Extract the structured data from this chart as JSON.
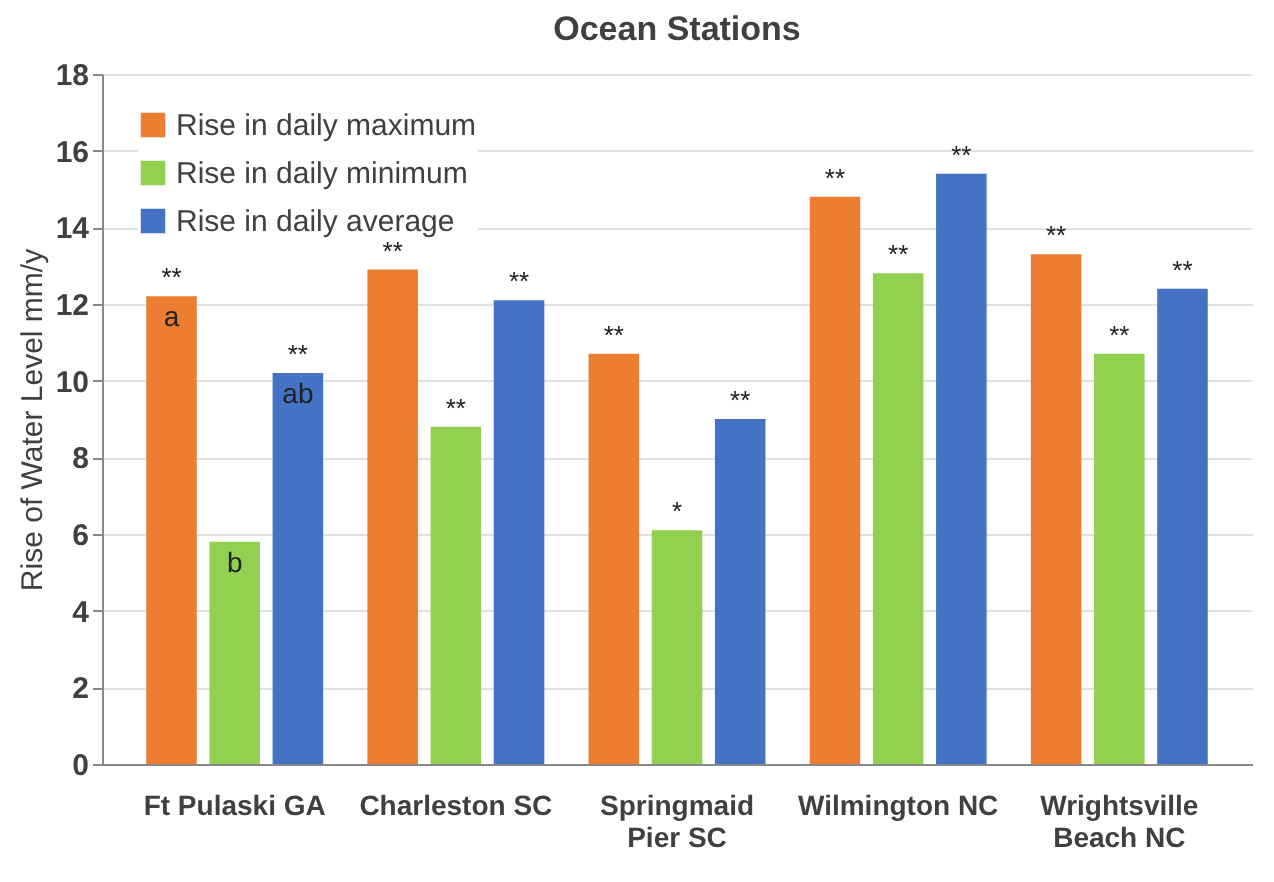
{
  "chart_data": {
    "type": "bar",
    "title": "Ocean Stations",
    "ylabel": "Rise of Water Level  mm/y",
    "categories": [
      "Ft Pulaski GA",
      "Charleston SC",
      "Springmaid Pier SC",
      "Wilmington NC",
      "Wrightsville Beach NC"
    ],
    "series": [
      {
        "name": "Rise in daily maximum",
        "color": "#ed7d31",
        "values": [
          12.2,
          12.9,
          10.7,
          14.8,
          13.3
        ],
        "value_labels": [
          "**",
          "**",
          "**",
          "**",
          "**"
        ]
      },
      {
        "name": "Rise in daily minimum",
        "color": "#92d050",
        "values": [
          5.8,
          8.8,
          6.1,
          12.8,
          10.7
        ],
        "value_labels": [
          null,
          "**",
          "*",
          "**",
          "**"
        ]
      },
      {
        "name": "Rise in daily average",
        "color": "#4472c4",
        "values": [
          10.2,
          12.1,
          9.0,
          15.4,
          12.4
        ],
        "value_labels": [
          "**",
          "**",
          "**",
          "**",
          "**"
        ]
      }
    ],
    "annotations": [
      "a",
      "b",
      "ab"
    ],
    "ylim": [
      0,
      18
    ],
    "yticks": [
      0,
      2,
      4,
      6,
      8,
      10,
      12,
      14,
      16,
      18
    ],
    "grid": "y",
    "legend": "top left"
  }
}
